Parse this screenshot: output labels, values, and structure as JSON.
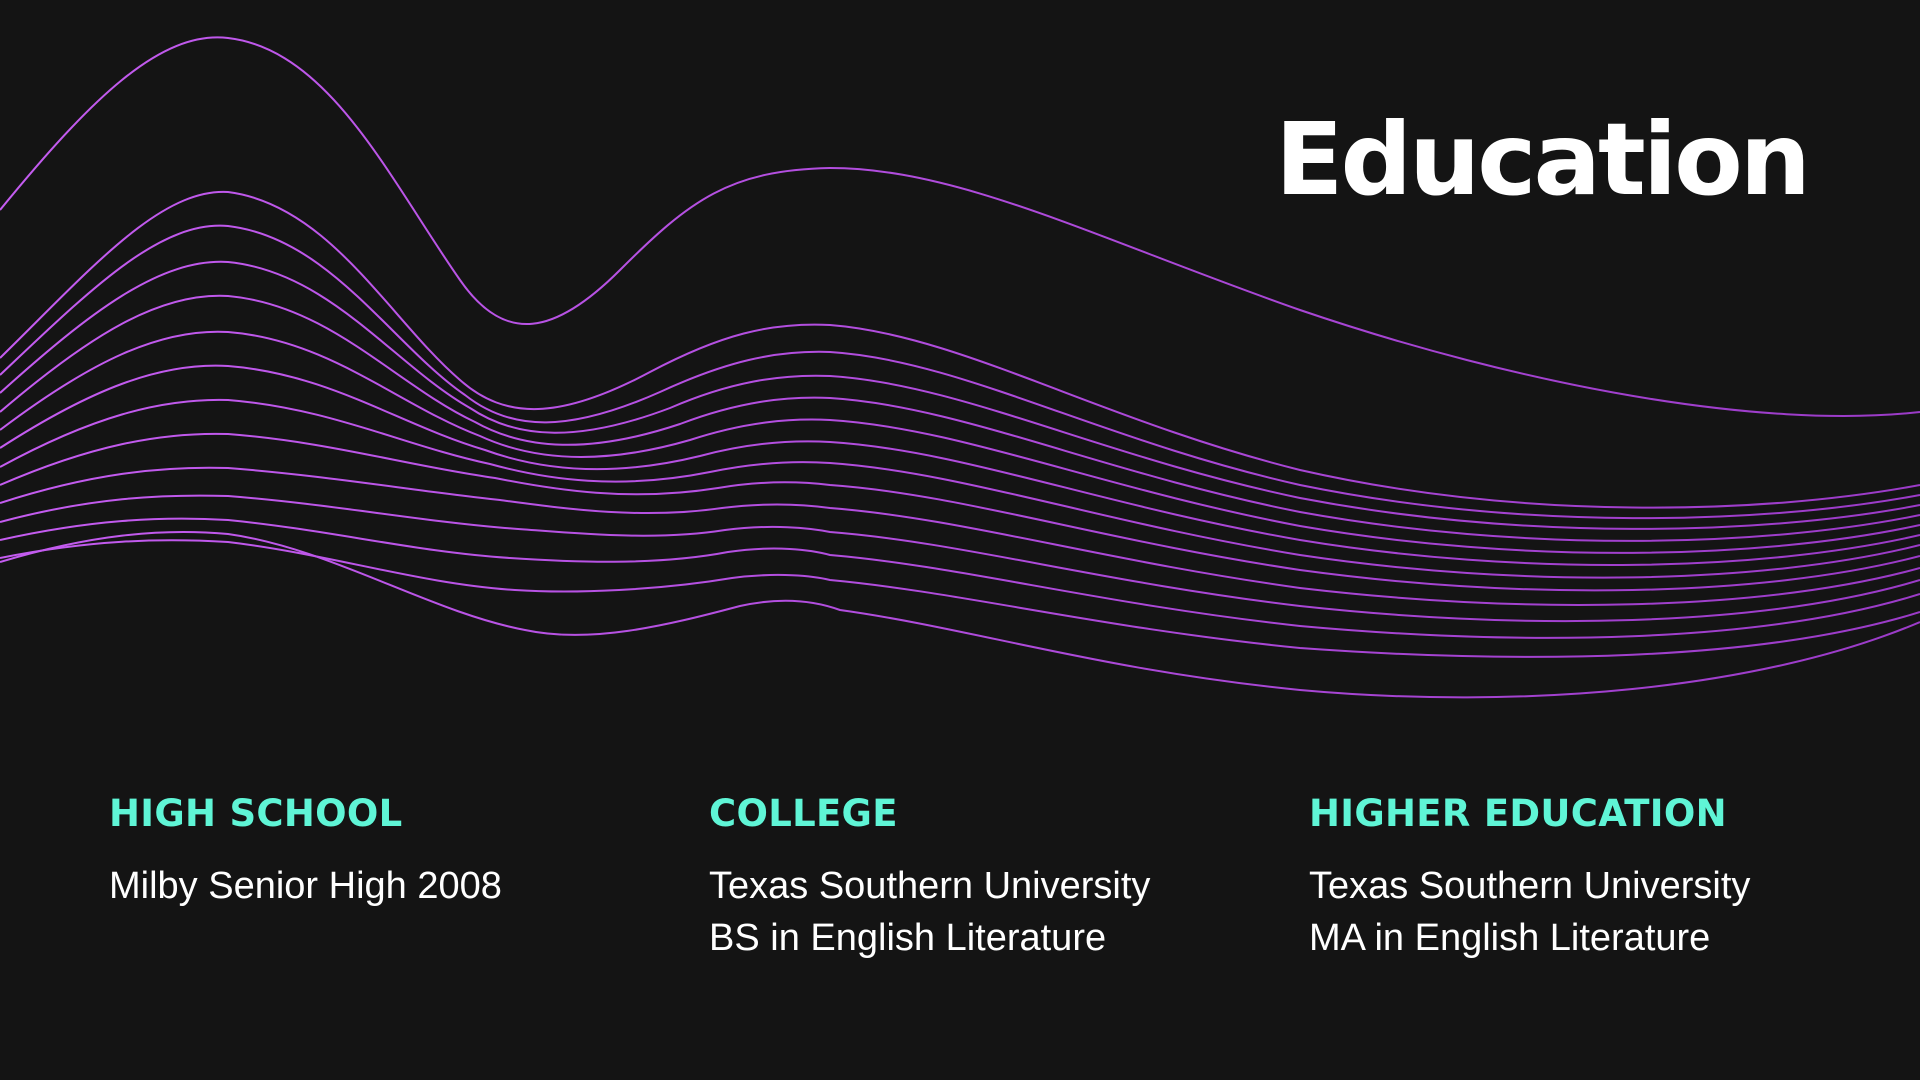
{
  "colors": {
    "background": "#141414",
    "title": "#ffffff",
    "heading": "#5ff5d6",
    "body": "#ffffff",
    "wave_start": "#c45cf0",
    "wave_end": "#9b3bc8"
  },
  "title": "Education",
  "columns": [
    {
      "heading": "HIGH SCHOOL",
      "lines": [
        "Milby Senior High 2008"
      ]
    },
    {
      "heading": "COLLEGE",
      "lines": [
        "Texas Southern University",
        "BS in English Literature"
      ]
    },
    {
      "heading": "HIGHER EDUCATION",
      "lines": [
        "Texas Southern University",
        "MA in English Literature"
      ]
    }
  ]
}
